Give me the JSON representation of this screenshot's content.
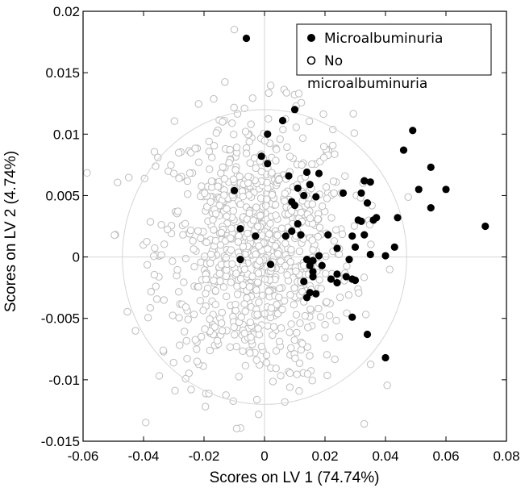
{
  "chart_data": {
    "type": "scatter",
    "title": "",
    "xlabel": "Scores on LV 1 (74.74%)",
    "ylabel": "Scores on LV 2 (4.74%)",
    "xlim": [
      -0.06,
      0.08
    ],
    "ylim": [
      -0.015,
      0.02
    ],
    "xticks": [
      "-0.06",
      "-0.04",
      "-0.02",
      "0",
      "0.02",
      "0.04",
      "0.06",
      "0.08"
    ],
    "yticks": [
      "0.02",
      "0.015",
      "0.01",
      "0.005",
      "0",
      "-0.005",
      "-0.01",
      "-0.015"
    ],
    "xtick_values": [
      -0.06,
      -0.04,
      -0.02,
      0,
      0.02,
      0.04,
      0.06,
      0.08
    ],
    "ytick_values": [
      0.02,
      0.015,
      0.01,
      0.005,
      0,
      -0.005,
      -0.01,
      -0.015
    ],
    "grid": false,
    "zero_lines": true,
    "confidence_ellipse": {
      "center": [
        0,
        0
      ],
      "rx": 0.047,
      "ry": 0.012
    },
    "legend": {
      "position": "top-right",
      "entries": [
        {
          "label": "Microalbuminuria",
          "marker": "filled-circle"
        },
        {
          "label": "No",
          "marker": "open-circle"
        }
      ],
      "wrapped_text": "microalbuminuria"
    },
    "series": [
      {
        "name": "Microalbuminuria",
        "marker": "filled",
        "color": "#000000",
        "x": [
          -0.006,
          0.01,
          0.006,
          0.001,
          -0.01,
          -0.001,
          0.001,
          0.008,
          0.01,
          0.011,
          0.014,
          0.015,
          0.018,
          0.009,
          0.011,
          0.013,
          0.017,
          -0.008,
          -0.003,
          0.009,
          0.007,
          0.012,
          0.014,
          0.016,
          0.015,
          0.019,
          0.024,
          0.027,
          0.029,
          0.026,
          0.033,
          0.035,
          0.032,
          0.034,
          0.037,
          0.031,
          0.032,
          0.036,
          0.033,
          0.029,
          0.021,
          0.024,
          0.03,
          0.028,
          0.035,
          0.04,
          0.044,
          0.043,
          0.051,
          0.055,
          0.046,
          0.049,
          0.055,
          0.06,
          0.073,
          0.018,
          0.022,
          0.024,
          0.03,
          0.015,
          0.017,
          0.014,
          0.002,
          -0.008,
          0.029,
          0.034,
          0.04,
          0.016,
          0.013,
          0.016
        ],
        "y": [
          0.0178,
          0.012,
          0.0111,
          0.01,
          0.0054,
          0.0082,
          0.0076,
          0.0066,
          0.0042,
          0.0056,
          0.0069,
          0.0059,
          0.0068,
          0.0045,
          0.0027,
          0.005,
          0.0049,
          0.0023,
          0.0017,
          0.0021,
          0.0017,
          0.0018,
          -0.0002,
          -0.0003,
          -0.0007,
          -0.0007,
          -0.0014,
          -0.0016,
          -0.0018,
          0.0052,
          0.0062,
          0.0061,
          0.0052,
          0.0044,
          0.0032,
          0.003,
          0.0029,
          0.003,
          0.0018,
          0.0017,
          0.0018,
          0.0007,
          0.0008,
          -0.0002,
          0.0002,
          0.0001,
          0.0032,
          0.0008,
          0.0055,
          0.0073,
          0.0087,
          0.0103,
          0.004,
          0.0055,
          0.0025,
          0.0001,
          -0.0018,
          -0.0021,
          -0.0019,
          -0.0029,
          -0.003,
          -0.0033,
          -0.0006,
          -0.0002,
          -0.0049,
          -0.0063,
          -0.0082,
          -0.0012,
          -0.002,
          -0.0016
        ]
      },
      {
        "name": "No microalbuminuria",
        "marker": "open",
        "color": "#bdbdbd",
        "count": 900,
        "distribution": {
          "center": [
            -0.003,
            0.0005
          ],
          "sd": [
            0.016,
            0.0055
          ]
        }
      }
    ]
  }
}
